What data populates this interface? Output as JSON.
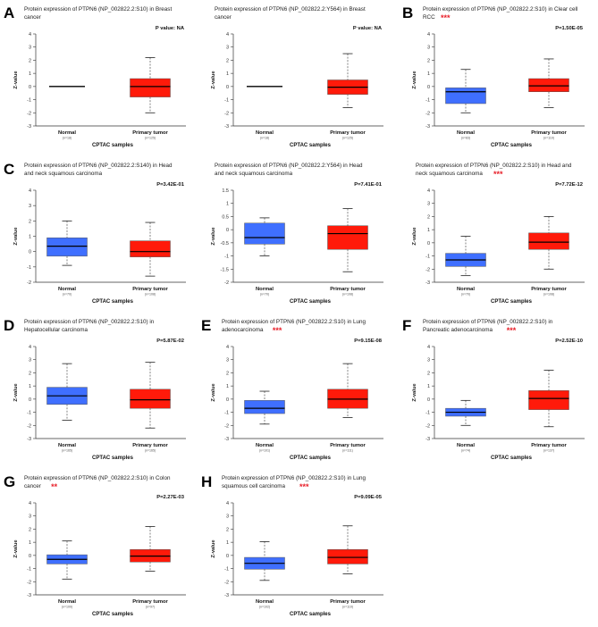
{
  "figure": {
    "colors": {
      "normal": "#3F6FFF",
      "tumor": "#FF1A0A",
      "stars": "#E8202A",
      "axis": "#333333",
      "median": "#000000"
    }
  },
  "chart_data": [
    {
      "panel_label": "A",
      "type": "boxplot",
      "title": [
        "Protein expression of PTPN6 (NP_002822.2:S10) in Breast",
        "cancer"
      ],
      "pvalue": "P value: NA",
      "stars": "",
      "ylabel": "Z-value",
      "xlabel": "CPTAC samples",
      "ylim": [
        -3,
        4
      ],
      "yticks": [
        -3,
        -2,
        -1,
        0,
        1,
        2,
        3,
        4
      ],
      "categories": [
        "Normal",
        "Primary tumor"
      ],
      "counts": [
        "(n=18)",
        "(n=125)"
      ],
      "boxes": [
        {
          "min": 0.0,
          "q1": 0.0,
          "median": 0.0,
          "q3": 0.0,
          "max": 0.0
        },
        {
          "min": -2.0,
          "q1": -0.8,
          "median": 0.0,
          "q3": 0.6,
          "max": 2.2
        }
      ]
    },
    {
      "panel_label": "",
      "type": "boxplot",
      "title": [
        "Protein expression of PTPN6 (NP_002822.2:Y564) in Breast",
        "cancer"
      ],
      "pvalue": "P value: NA",
      "stars": "",
      "ylabel": "Z-value",
      "xlabel": "CPTAC samples",
      "ylim": [
        -3,
        4
      ],
      "yticks": [
        -3,
        -2,
        -1,
        0,
        1,
        2,
        3,
        4
      ],
      "categories": [
        "Normal",
        "Primary tumor"
      ],
      "counts": [
        "(n=18)",
        "(n=125)"
      ],
      "boxes": [
        {
          "min": 0.0,
          "q1": 0.0,
          "median": 0.0,
          "q3": 0.0,
          "max": 0.0
        },
        {
          "min": -1.6,
          "q1": -0.6,
          "median": -0.05,
          "q3": 0.5,
          "max": 2.5
        }
      ]
    },
    {
      "panel_label": "B",
      "type": "boxplot",
      "title": [
        "Protein expression of PTPN6 (NP_002822.2:S10) in Clear cell",
        "RCC"
      ],
      "pvalue": "P=1.50E-05",
      "stars": "***",
      "ylabel": "Z-value",
      "xlabel": "CPTAC samples",
      "ylim": [
        -3,
        4
      ],
      "yticks": [
        -3,
        -2,
        -1,
        0,
        1,
        2,
        3,
        4
      ],
      "categories": [
        "Normal",
        "Primary tumor"
      ],
      "counts": [
        "(n=83)",
        "(n=110)"
      ],
      "boxes": [
        {
          "min": -2.0,
          "q1": -1.3,
          "median": -0.4,
          "q3": -0.1,
          "max": 1.3
        },
        {
          "min": -1.6,
          "q1": -0.4,
          "median": 0.05,
          "q3": 0.6,
          "max": 2.1
        }
      ]
    },
    {
      "panel_label": "C",
      "type": "boxplot",
      "title": [
        "Protein expression of PTPN6 (NP_002822.2:S140) in Head",
        "and neck squamous carcinoma"
      ],
      "pvalue": "P=3.42E-01",
      "stars": "",
      "ylabel": "Z-value",
      "xlabel": "CPTAC samples",
      "ylim": [
        -2,
        4
      ],
      "yticks": [
        -2,
        -1,
        0,
        1,
        2,
        3,
        4
      ],
      "categories": [
        "Normal",
        "Primary tumor"
      ],
      "counts": [
        "(n=70)",
        "(n=108)"
      ],
      "boxes": [
        {
          "min": -0.9,
          "q1": -0.3,
          "median": 0.35,
          "q3": 0.9,
          "max": 2.0
        },
        {
          "min": -1.6,
          "q1": -0.35,
          "median": 0.0,
          "q3": 0.7,
          "max": 1.9
        }
      ]
    },
    {
      "panel_label": "",
      "type": "boxplot",
      "title": [
        "Protein expression of PTPN6 (NP_002822.2:Y564) in Head",
        "and neck squamous carcinoma"
      ],
      "pvalue": "P=7.41E-01",
      "stars": "",
      "ylabel": "Z-value",
      "xlabel": "CPTAC samples",
      "ylim": [
        -2,
        1.5
      ],
      "yticks": [
        -2,
        -1.5,
        -1,
        -0.5,
        0,
        0.5,
        1,
        1.5
      ],
      "categories": [
        "Normal",
        "Primary tumor"
      ],
      "counts": [
        "(n=70)",
        "(n=108)"
      ],
      "boxes": [
        {
          "min": -1.0,
          "q1": -0.55,
          "median": -0.3,
          "q3": 0.25,
          "max": 0.45
        },
        {
          "min": -1.6,
          "q1": -0.75,
          "median": -0.15,
          "q3": 0.15,
          "max": 0.8
        }
      ]
    },
    {
      "panel_label": "",
      "type": "boxplot",
      "title": [
        "Protein expression of PTPN6 (NP_002822.2:S10) in Head and",
        "neck squamous carcinoma"
      ],
      "pvalue": "P=7.72E-12",
      "stars": "***",
      "ylabel": "Z-value",
      "xlabel": "CPTAC samples",
      "ylim": [
        -3,
        4
      ],
      "yticks": [
        -3,
        -2,
        -1,
        0,
        1,
        2,
        3,
        4
      ],
      "categories": [
        "Normal",
        "Primary tumor"
      ],
      "counts": [
        "(n=70)",
        "(n=108)"
      ],
      "boxes": [
        {
          "min": -2.5,
          "q1": -1.8,
          "median": -1.3,
          "q3": -0.8,
          "max": 0.5
        },
        {
          "min": -2.0,
          "q1": -0.5,
          "median": 0.05,
          "q3": 0.75,
          "max": 2.0
        }
      ]
    },
    {
      "panel_label": "D",
      "type": "boxplot",
      "title": [
        "Protein expression of PTPN6 (NP_002822.2:S10) in",
        "Hepatocellular carcinoma"
      ],
      "pvalue": "P=5.87E-02",
      "stars": "",
      "ylabel": "Z-value",
      "xlabel": "CPTAC samples",
      "ylim": [
        -3,
        4
      ],
      "yticks": [
        -3,
        -2,
        -1,
        0,
        1,
        2,
        3,
        4
      ],
      "categories": [
        "Normal",
        "Primary tumor"
      ],
      "counts": [
        "(n=165)",
        "(n=165)"
      ],
      "boxes": [
        {
          "min": -1.6,
          "q1": -0.4,
          "median": 0.25,
          "q3": 0.9,
          "max": 2.7
        },
        {
          "min": -2.2,
          "q1": -0.7,
          "median": -0.05,
          "q3": 0.75,
          "max": 2.8
        }
      ]
    },
    {
      "panel_label": "E",
      "type": "boxplot",
      "title": [
        "Protein expression of PTPN6 (NP_002822.2:S10) in Lung",
        "adenocarcinoma"
      ],
      "pvalue": "P=9.15E-08",
      "stars": "***",
      "ylabel": "Z-value",
      "xlabel": "CPTAC samples",
      "ylim": [
        -3,
        4
      ],
      "yticks": [
        -3,
        -2,
        -1,
        0,
        1,
        2,
        3,
        4
      ],
      "categories": [
        "Normal",
        "Primary tumor"
      ],
      "counts": [
        "(n=101)",
        "(n=111)"
      ],
      "boxes": [
        {
          "min": -1.9,
          "q1": -1.1,
          "median": -0.7,
          "q3": -0.1,
          "max": 0.6
        },
        {
          "min": -1.4,
          "q1": -0.7,
          "median": 0.0,
          "q3": 0.75,
          "max": 2.7
        }
      ]
    },
    {
      "panel_label": "F",
      "type": "boxplot",
      "title": [
        "Protein expression of PTPN6 (NP_002822.2:S10) in",
        "Pancreatic adenocarcinoma"
      ],
      "pvalue": "P=2.52E-10",
      "stars": "***",
      "ylabel": "Z-value",
      "xlabel": "CPTAC samples",
      "ylim": [
        -3,
        4
      ],
      "yticks": [
        -3,
        -2,
        -1,
        0,
        1,
        2,
        3,
        4
      ],
      "categories": [
        "Normal",
        "Primary tumor"
      ],
      "counts": [
        "(n=74)",
        "(n=137)"
      ],
      "boxes": [
        {
          "min": -2.0,
          "q1": -1.3,
          "median": -1.0,
          "q3": -0.7,
          "max": -0.1
        },
        {
          "min": -2.1,
          "q1": -0.8,
          "median": 0.05,
          "q3": 0.65,
          "max": 2.2
        }
      ]
    },
    {
      "panel_label": "G",
      "type": "boxplot",
      "title": [
        "Protein expression of PTPN6 (NP_002822.2:S10) in Colon",
        "cancer"
      ],
      "pvalue": "P=2.27E-03",
      "stars": "**",
      "ylabel": "Z-value",
      "xlabel": "CPTAC samples",
      "ylim": [
        -3,
        4
      ],
      "yticks": [
        -3,
        -2,
        -1,
        0,
        1,
        2,
        3,
        4
      ],
      "categories": [
        "Normal",
        "Primary tumor"
      ],
      "counts": [
        "(n=100)",
        "(n=97)"
      ],
      "boxes": [
        {
          "min": -1.8,
          "q1": -0.65,
          "median": -0.3,
          "q3": 0.05,
          "max": 1.1
        },
        {
          "min": -1.2,
          "q1": -0.5,
          "median": -0.05,
          "q3": 0.45,
          "max": 2.2
        }
      ]
    },
    {
      "panel_label": "H",
      "type": "boxplot",
      "title": [
        "Protein expression of PTPN6 (NP_002822.2:S10) in Lung",
        "squamous cell carcinoma"
      ],
      "pvalue": "P=9.09E-05",
      "stars": "***",
      "ylabel": "Z-value",
      "xlabel": "CPTAC samples",
      "ylim": [
        -3,
        4
      ],
      "yticks": [
        -3,
        -2,
        -1,
        0,
        1,
        2,
        3,
        4
      ],
      "categories": [
        "Normal",
        "Primary tumor"
      ],
      "counts": [
        "(n=102)",
        "(n=110)"
      ],
      "boxes": [
        {
          "min": -1.9,
          "q1": -1.05,
          "median": -0.6,
          "q3": -0.15,
          "max": 1.05
        },
        {
          "min": -1.4,
          "q1": -0.65,
          "median": -0.15,
          "q3": 0.45,
          "max": 2.25
        }
      ]
    }
  ]
}
